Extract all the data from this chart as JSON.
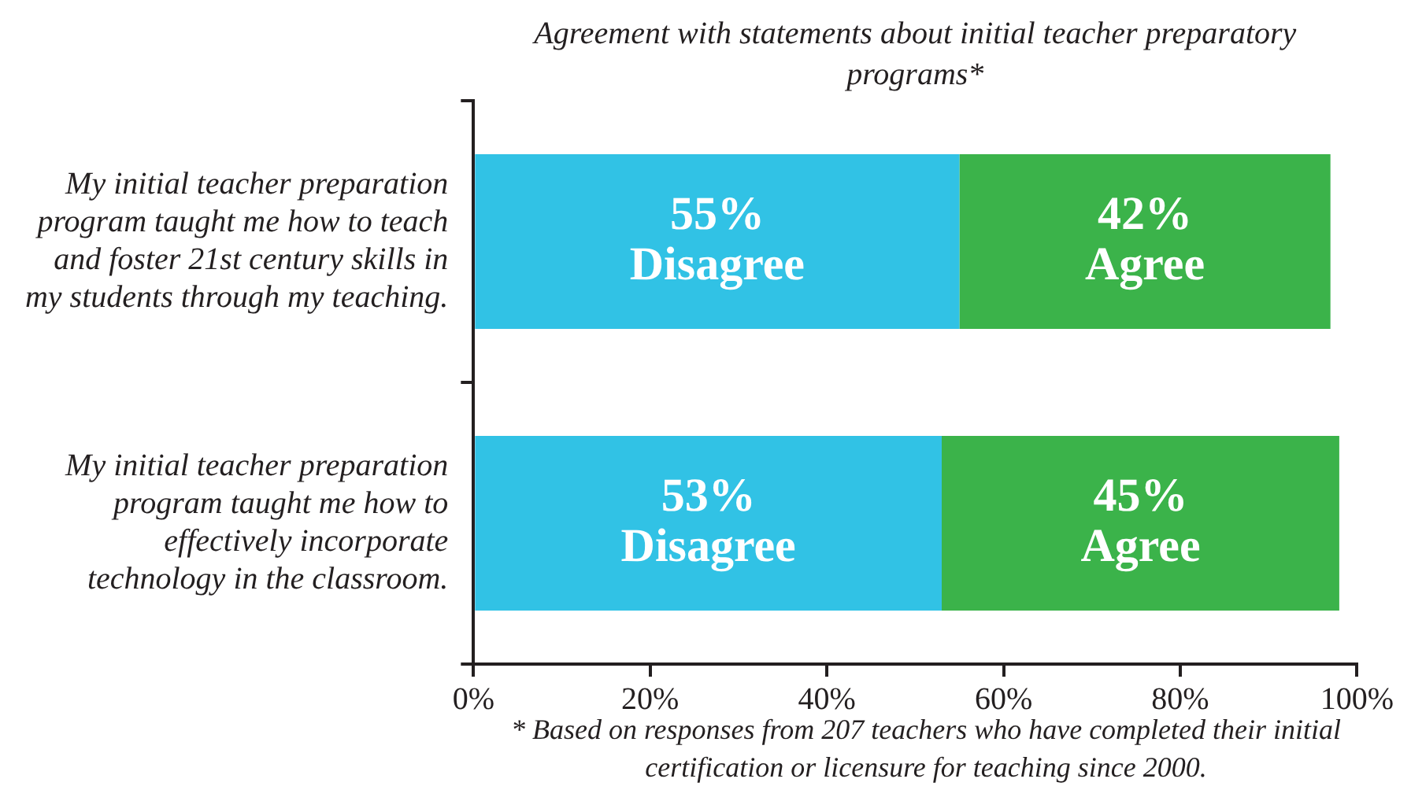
{
  "chart_data": {
    "type": "bar",
    "orientation": "horizontal",
    "stacked": true,
    "title": "Agreement with statements about initial teacher preparatory programs*",
    "categories": [
      "My initial teacher preparation program taught me how to teach and foster 21st century skills in my students through my teaching.",
      "My initial teacher preparation program taught me how to effectively incorporate technology in the classroom."
    ],
    "series": [
      {
        "name": "Disagree",
        "color": "#31c2e5",
        "values": [
          55,
          53
        ],
        "value_labels": [
          "55%",
          "53%"
        ]
      },
      {
        "name": "Agree",
        "color": "#3bb34a",
        "values": [
          42,
          45
        ],
        "value_labels": [
          "42%",
          "45%"
        ]
      }
    ],
    "xlim": [
      0,
      100
    ],
    "xticks": [
      {
        "value": 0,
        "label": "0%"
      },
      {
        "value": 20,
        "label": "20%"
      },
      {
        "value": 40,
        "label": "40%"
      },
      {
        "value": 60,
        "label": "60%"
      },
      {
        "value": 80,
        "label": "80%"
      },
      {
        "value": 100,
        "label": "100%"
      }
    ],
    "legend": false,
    "annotations": [
      "* Based on responses from 207 teachers who have completed their initial certification or licensure for teaching since 2000."
    ]
  }
}
